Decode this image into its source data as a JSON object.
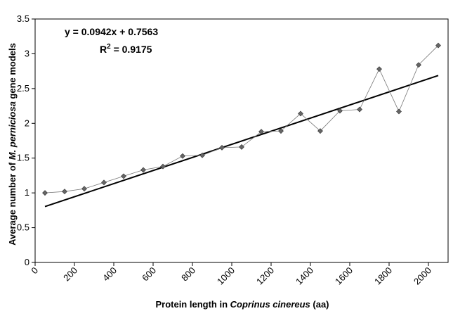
{
  "chart_data": {
    "type": "scatter",
    "xlabel_parts": [
      "Protein length in ",
      "Coprinus cinereus",
      " (aa)"
    ],
    "ylabel_parts": [
      "Average number of ",
      "M. perniciosa",
      " gene models"
    ],
    "xlim": [
      0,
      2100
    ],
    "ylim": [
      0,
      3.5
    ],
    "x_ticks": [
      0,
      200,
      400,
      600,
      800,
      1000,
      1200,
      1400,
      1600,
      1800,
      2000
    ],
    "x_tick_labels": [
      "0",
      "200",
      "400",
      "600",
      "800",
      "1000",
      "1200",
      "1400",
      "1600",
      "1800",
      "2000"
    ],
    "y_ticks": [
      0,
      0.5,
      1,
      1.5,
      2,
      2.5,
      3,
      3.5
    ],
    "y_tick_labels": [
      "0",
      "0.5",
      "1",
      "1.5",
      "2",
      "2.5",
      "3",
      "3.5"
    ],
    "grid": false,
    "series": [
      {
        "marker": "diamond",
        "color": "#666666",
        "x": [
          50,
          150,
          250,
          350,
          450,
          550,
          650,
          750,
          850,
          950,
          1050,
          1150,
          1250,
          1350,
          1450,
          1550,
          1650,
          1750,
          1850,
          1950,
          2050
        ],
        "y": [
          1.0,
          1.02,
          1.06,
          1.15,
          1.24,
          1.33,
          1.38,
          1.53,
          1.54,
          1.65,
          1.66,
          1.88,
          1.89,
          2.14,
          1.89,
          2.18,
          2.2,
          2.78,
          2.17,
          2.84,
          3.12
        ]
      }
    ],
    "trendline": {
      "slope": 0.0942,
      "intercept": 0.7563,
      "unit_x": 100,
      "x_start": 50,
      "x_end": 2050,
      "color": "#000000",
      "equation": "y = 0.0942x + 0.7563",
      "r2_label": "R",
      "r2_exp": "2",
      "r2_value": " = 0.9175"
    }
  }
}
